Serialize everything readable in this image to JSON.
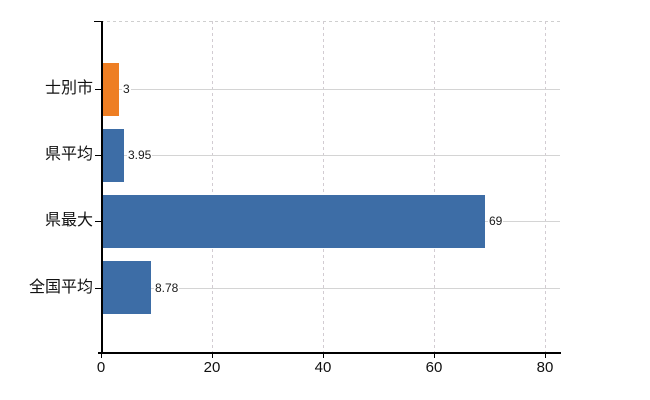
{
  "chart_data": {
    "type": "bar",
    "orientation": "horizontal",
    "title": "",
    "xlabel": "",
    "ylabel": "",
    "categories": [
      "士別市",
      "県平均",
      "県最大",
      "全国平均"
    ],
    "values": [
      3,
      3.95,
      69,
      8.78
    ],
    "value_labels": [
      "3",
      "3.95",
      "69",
      "8.78"
    ],
    "bar_colors": [
      "#ee7e23",
      "#3d6da6",
      "#3d6da6",
      "#3d6da6"
    ],
    "x_ticks": [
      0,
      20,
      40,
      60,
      80
    ],
    "x_tick_labels": [
      "0",
      "20",
      "40",
      "60",
      "80"
    ],
    "xlim": [
      0,
      80
    ],
    "grid": "vertical-dashed, horizontal-solid",
    "legend": "none"
  },
  "style": {
    "highlight_color": "#ee7e23",
    "series_color": "#3d6da6",
    "grid_color": "#d4d4d4",
    "axis_color": "#000000",
    "text_color": "#111111",
    "background": "#ffffff"
  }
}
